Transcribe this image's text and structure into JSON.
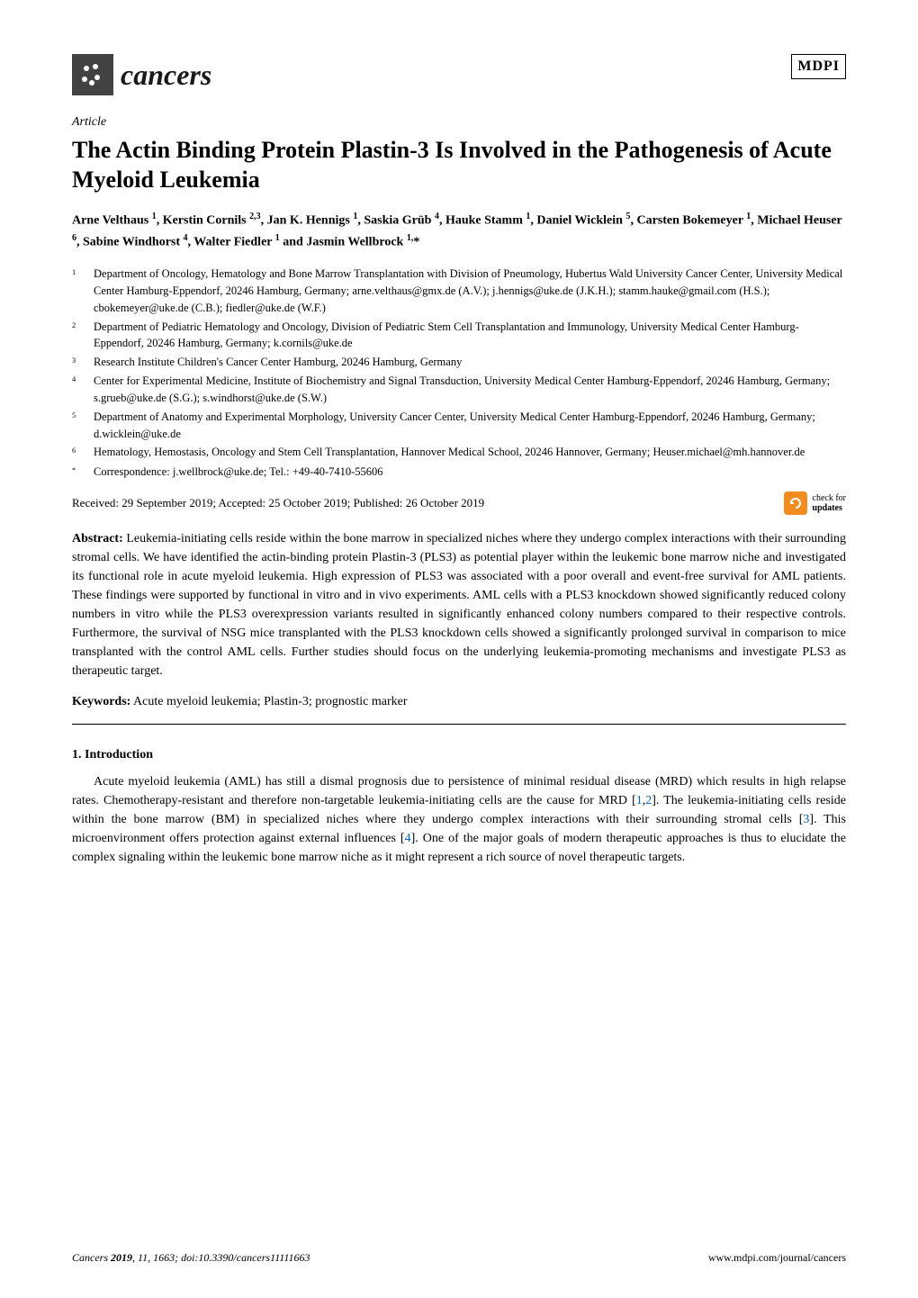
{
  "header": {
    "journal_name": "cancers",
    "publisher_logo": "MDPI"
  },
  "article_type": "Article",
  "title": "The Actin Binding Protein Plastin-3 Is Involved in the Pathogenesis of Acute Myeloid Leukemia",
  "authors_html": "Arne Velthaus <sup>1</sup>, Kerstin Cornils <sup>2,3</sup>, Jan K. Hennigs <sup>1</sup>, Saskia Grüb <sup>4</sup>, Hauke Stamm <sup>1</sup>, Daniel Wicklein <sup>5</sup>, Carsten Bokemeyer <sup>1</sup>, Michael Heuser <sup>6</sup>, Sabine Windhorst <sup>4</sup>, Walter Fiedler <sup>1</sup> and Jasmin Wellbrock <sup>1,</sup>*",
  "affiliations": [
    {
      "num": "1",
      "text": "Department of Oncology, Hematology and Bone Marrow Transplantation with Division of Pneumology, Hubertus Wald University Cancer Center, University Medical Center Hamburg-Eppendorf, 20246 Hamburg, Germany; arne.velthaus@gmx.de (A.V.); j.hennigs@uke.de (J.K.H.); stamm.hauke@gmail.com (H.S.); cbokemeyer@uke.de (C.B.); fiedler@uke.de (W.F.)"
    },
    {
      "num": "2",
      "text": "Department of Pediatric Hematology and Oncology, Division of Pediatric Stem Cell Transplantation and Immunology, University Medical Center Hamburg-Eppendorf, 20246 Hamburg, Germany; k.cornils@uke.de"
    },
    {
      "num": "3",
      "text": "Research Institute Children's Cancer Center Hamburg, 20246 Hamburg, Germany"
    },
    {
      "num": "4",
      "text": "Center for Experimental Medicine, Institute of Biochemistry and Signal Transduction, University Medical Center Hamburg-Eppendorf, 20246 Hamburg, Germany; s.grueb@uke.de (S.G.); s.windhorst@uke.de (S.W.)"
    },
    {
      "num": "5",
      "text": "Department of Anatomy and Experimental Morphology, University Cancer Center, University Medical Center Hamburg-Eppendorf, 20246 Hamburg, Germany; d.wicklein@uke.de"
    },
    {
      "num": "6",
      "text": "Hematology, Hemostasis, Oncology and Stem Cell Transplantation, Hannover Medical School, 20246 Hannover, Germany; Heuser.michael@mh.hannover.de"
    },
    {
      "num": "*",
      "text": "Correspondence: j.wellbrock@uke.de; Tel.: +49-40-7410-55606"
    }
  ],
  "dates": "Received: 29 September 2019; Accepted: 25 October 2019; Published: 26 October 2019",
  "updates_badge": {
    "line1": "check for",
    "line2": "updates"
  },
  "abstract_label": "Abstract:",
  "abstract_text": " Leukemia-initiating cells reside within the bone marrow in specialized niches where they undergo complex interactions with their surrounding stromal cells. We have identified the actin-binding protein Plastin-3 (PLS3) as potential player within the leukemic bone marrow niche and investigated its functional role in acute myeloid leukemia. High expression of PLS3 was associated with a poor overall and event-free survival for AML patients. These findings were supported by functional in vitro and in vivo experiments. AML cells with a PLS3 knockdown showed significantly reduced colony numbers in vitro while the PLS3 overexpression variants resulted in significantly enhanced colony numbers compared to their respective controls. Furthermore, the survival of NSG mice transplanted with the PLS3 knockdown cells showed a significantly prolonged survival in comparison to mice transplanted with the control AML cells. Further studies should focus on the underlying leukemia-promoting mechanisms and investigate PLS3 as therapeutic target.",
  "keywords_label": "Keywords:",
  "keywords_text": " Acute myeloid leukemia; Plastin-3; prognostic marker",
  "section1_heading": "1. Introduction",
  "intro_html": "Acute myeloid leukemia (AML) has still a dismal prognosis due to persistence of minimal residual disease (MRD) which results in high relapse rates. Chemotherapy-resistant and therefore non-targetable leukemia-initiating cells are the cause for MRD [<span class='ref-link'>1</span>,<span class='ref-link'>2</span>]. The leukemia-initiating cells reside within the bone marrow (BM) in specialized niches where they undergo complex interactions with their surrounding stromal cells [<span class='ref-link'>3</span>]. This microenvironment offers protection against external influences [<span class='ref-link'>4</span>]. One of the major goals of modern therapeutic approaches is thus to elucidate the complex signaling within the leukemic bone marrow niche as it might represent a rich source of novel therapeutic targets.",
  "footer": {
    "left_html": "<i>Cancers</i> <b>2019</b>, <i>11</i>, 1663; doi:10.3390/cancers11111663",
    "right": "www.mdpi.com/journal/cancers"
  },
  "colors": {
    "ref_link": "#0066cc",
    "updates_badge_bg": "#f28c1e",
    "journal_icon_bg": "#424242",
    "text": "#000000",
    "background": "#ffffff"
  }
}
